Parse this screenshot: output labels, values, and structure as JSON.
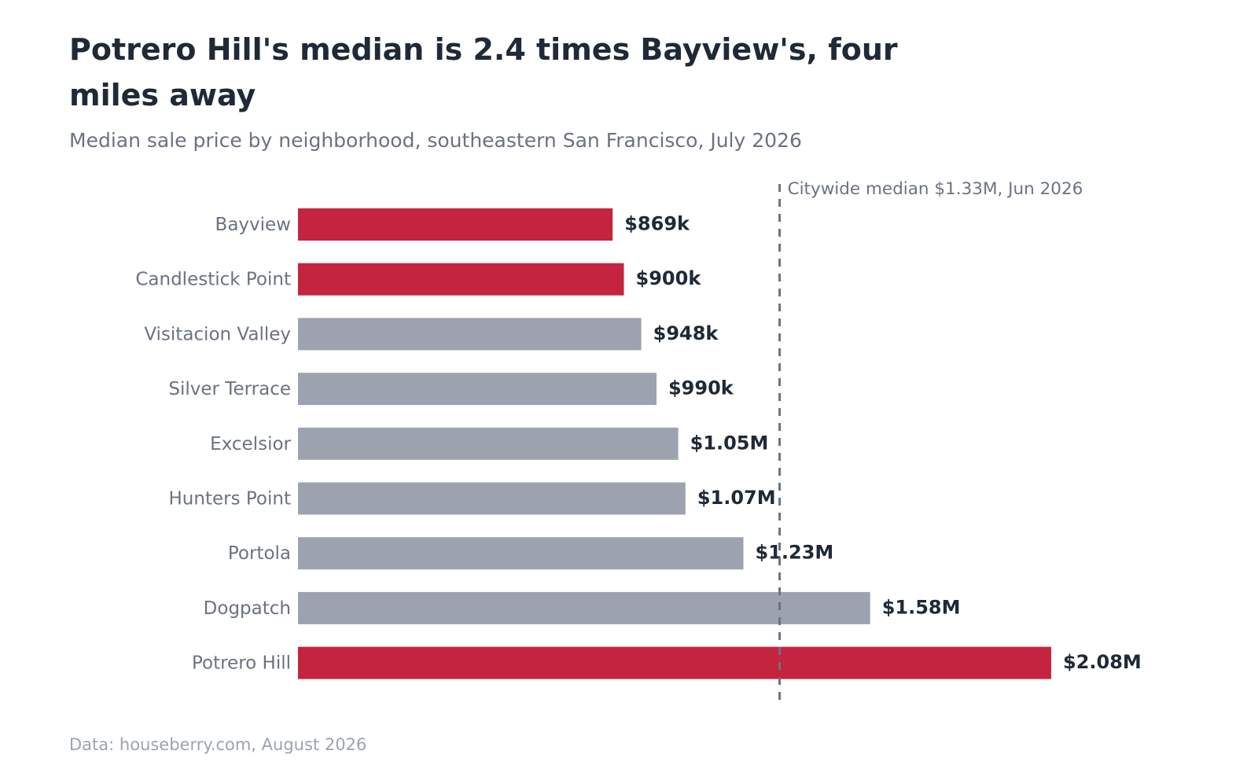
{
  "title": "Potrero Hill's median is 2.4 times Bayview's, four miles away",
  "subtitle": "Median sale price by neighborhood, southeastern San Francisco, July 2026",
  "source": "Data: houseberry.com, August 2026",
  "colors": {
    "highlight": "#c4243f",
    "neutral": "#9ca3af",
    "label_text": "#6b7280",
    "value_text": "#1f2937",
    "reference_line": "#6b7280"
  },
  "chart_data": {
    "type": "bar",
    "orientation": "horizontal",
    "categories": [
      "Bayview",
      "Candlestick Point",
      "Visitacion Valley",
      "Silver Terrace",
      "Excelsior",
      "Hunters Point",
      "Portola",
      "Dogpatch",
      "Potrero Hill"
    ],
    "values": [
      869000,
      900000,
      948000,
      990000,
      1050000,
      1070000,
      1230000,
      1580000,
      2080000
    ],
    "value_labels": [
      "$869k",
      "$900k",
      "$948k",
      "$990k",
      "$1.05M",
      "$1.07M",
      "$1.23M",
      "$1.58M",
      "$2.08M"
    ],
    "highlighted": [
      "Bayview",
      "Candlestick Point",
      "Potrero Hill"
    ],
    "xlim": [
      0,
      2300000
    ],
    "grid": false,
    "reference_line": {
      "value": 1330000,
      "label": "Citywide median $1.33M, Jun 2026"
    }
  }
}
